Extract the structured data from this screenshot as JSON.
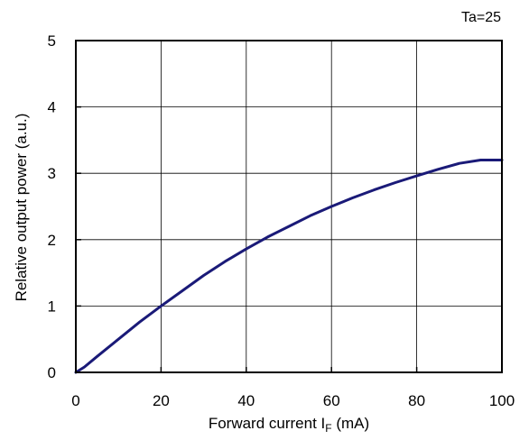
{
  "chart_data": {
    "type": "line",
    "annotation": "Ta=25",
    "xlabel_main": "Forward current I",
    "xlabel_sub": "F",
    "xlabel_unit": " (mA)",
    "ylabel": "Relative output power (a.u.)",
    "xlim": [
      0,
      100
    ],
    "ylim": [
      0,
      5
    ],
    "xticks": [
      "0",
      "20",
      "40",
      "60",
      "80",
      "100"
    ],
    "yticks": [
      "0",
      "1",
      "2",
      "3",
      "4",
      "5"
    ],
    "grid": true,
    "line_color": "#1a1a78",
    "series": [
      {
        "x": [
          0,
          2,
          5,
          10,
          15,
          20,
          25,
          30,
          35,
          40,
          45,
          50,
          55,
          60,
          65,
          70,
          75,
          80,
          85,
          90,
          95,
          100
        ],
        "y": [
          0,
          0.08,
          0.24,
          0.5,
          0.76,
          1.0,
          1.23,
          1.46,
          1.67,
          1.86,
          2.04,
          2.2,
          2.36,
          2.5,
          2.63,
          2.75,
          2.86,
          2.96,
          3.06,
          3.15,
          3.2,
          3.2
        ]
      }
    ]
  }
}
